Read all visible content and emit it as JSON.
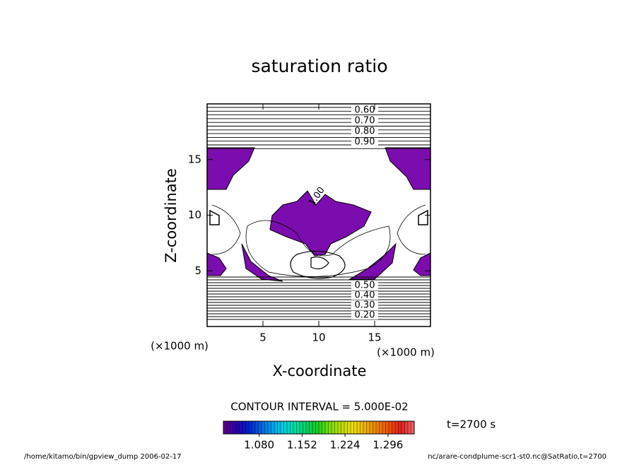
{
  "chart_data": {
    "type": "contour",
    "title": "saturation ratio",
    "xlabel": "X-coordinate",
    "ylabel": "Z-coordinate",
    "x_unit": "(×1000 m)",
    "y_unit": "(×1000 m)",
    "xlim": [
      0,
      20
    ],
    "ylim": [
      0,
      20
    ],
    "xticks": [
      5,
      10,
      15
    ],
    "yticks": [
      5,
      10,
      15
    ],
    "contour_labels_top": [
      "0.60",
      "0.70",
      "0.80",
      "0.90"
    ],
    "contour_label_mid": "1.00",
    "contour_labels_bottom": [
      "0.50",
      "0.40",
      "0.30",
      "0.20"
    ],
    "fill_color": "#7b0dae",
    "contour_interval": "CONTOUR INTERVAL = 5.000E-02",
    "colorbar": {
      "clim": [
        1.02,
        1.34
      ],
      "colors": [
        "#5a0090",
        "#2a00b0",
        "#0020d0",
        "#0060e0",
        "#00a0f0",
        "#00d0e0",
        "#00e0a0",
        "#00d060",
        "#20d020",
        "#80e000",
        "#c0e000",
        "#f0e000",
        "#f0b000",
        "#f08000",
        "#f05000",
        "#e02020",
        "#f06060"
      ],
      "ticks": [
        {
          "value": 1.08,
          "label": "1.080"
        },
        {
          "value": 1.152,
          "label": "1.152"
        },
        {
          "value": 1.224,
          "label": "1.224"
        },
        {
          "value": 1.296,
          "label": "1.296"
        }
      ]
    },
    "time_label": "t=2700 s",
    "footer_left": "/home/kitamo/bin/gpview_dump  2006-02-17",
    "footer_right": "nc/arare-condplume-scr1-st0.nc@SatRatio,t=2700"
  }
}
